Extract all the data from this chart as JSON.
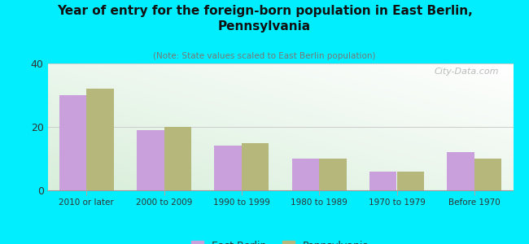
{
  "title": "Year of entry for the foreign-born population in East Berlin,\nPennsylvania",
  "subtitle": "(Note: State values scaled to East Berlin population)",
  "categories": [
    "2010 or later",
    "2000 to 2009",
    "1990 to 1999",
    "1980 to 1989",
    "1970 to 1979",
    "Before 1970"
  ],
  "east_berlin": [
    30,
    19,
    14,
    10,
    6,
    12
  ],
  "pennsylvania": [
    32,
    20,
    15,
    10,
    6,
    10
  ],
  "color_east_berlin": "#c9a0dc",
  "color_pennsylvania": "#b5b87a",
  "background_color": "#00eeff",
  "ylim": [
    0,
    40
  ],
  "yticks": [
    0,
    20,
    40
  ],
  "bar_width": 0.35,
  "watermark": "City-Data.com",
  "legend_label_eb": "East Berlin",
  "legend_label_pa": "Pennsylvania"
}
